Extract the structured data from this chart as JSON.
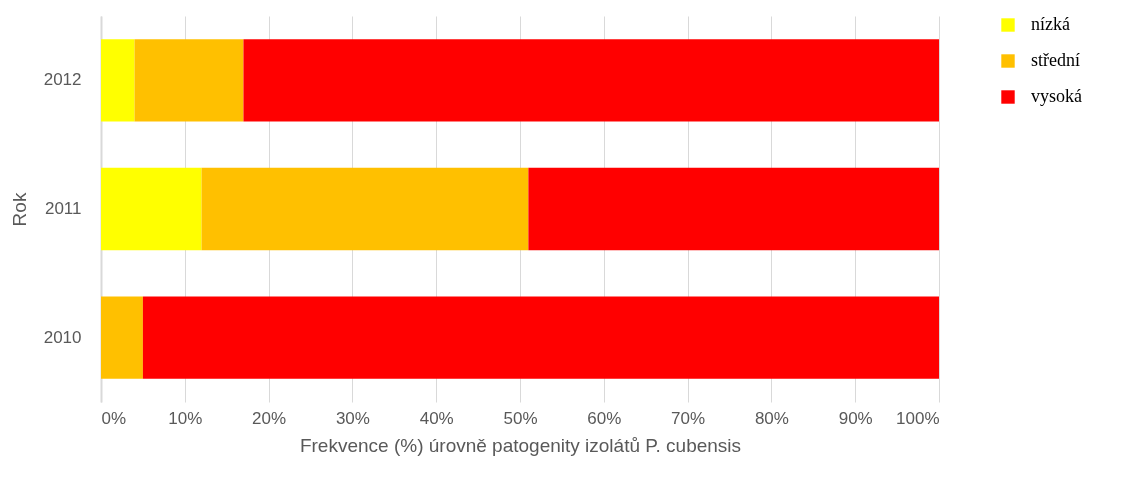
{
  "chart_data": {
    "type": "bar",
    "orientation": "horizontal",
    "stacked": true,
    "xlabel": "Frekvence (%) úrovně patogenity izolátů P. cubensis",
    "ylabel": "Rok",
    "categories": [
      "2012",
      "2011",
      "2010"
    ],
    "series": [
      {
        "name": "nízká",
        "color": "#ffff00",
        "values": [
          4,
          12,
          0
        ]
      },
      {
        "name": "střední",
        "color": "#ffc000",
        "values": [
          13,
          39,
          5
        ]
      },
      {
        "name": "vysoká",
        "color": "#ff0000",
        "values": [
          83,
          49,
          95
        ]
      }
    ],
    "xlim": [
      0,
      100
    ],
    "xticks": [
      {
        "value": 0,
        "label": "0%"
      },
      {
        "value": 10,
        "label": "10%"
      },
      {
        "value": 20,
        "label": "20%"
      },
      {
        "value": 30,
        "label": "30%"
      },
      {
        "value": 40,
        "label": "40%"
      },
      {
        "value": 50,
        "label": "50%"
      },
      {
        "value": 60,
        "label": "60%"
      },
      {
        "value": 70,
        "label": "70%"
      },
      {
        "value": 80,
        "label": "80%"
      },
      {
        "value": 90,
        "label": "90%"
      },
      {
        "value": 100,
        "label": "100%"
      }
    ],
    "grid": "x",
    "legend": "right"
  }
}
